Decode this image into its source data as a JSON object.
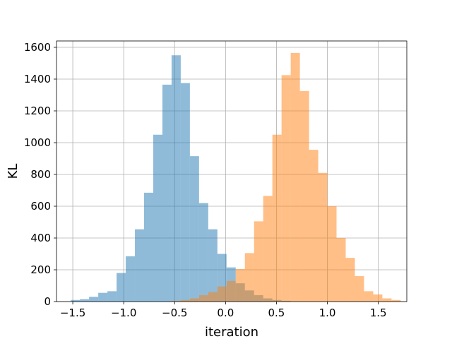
{
  "chart_data": {
    "type": "bar",
    "xlabel": "iteration",
    "ylabel": "KL",
    "xlim": [
      -1.66,
      1.78
    ],
    "ylim": [
      0,
      1640
    ],
    "grid": true,
    "x_ticks": [
      -1.5,
      -1.0,
      -0.5,
      0.0,
      0.5,
      1.0,
      1.5
    ],
    "x_tick_labels": [
      "−1.5",
      "−1.0",
      "−0.5",
      "0.0",
      "0.5",
      "1.0",
      "1.5"
    ],
    "y_ticks": [
      0,
      200,
      400,
      600,
      800,
      1000,
      1200,
      1400,
      1600
    ],
    "y_tick_labels": [
      "0",
      "200",
      "400",
      "600",
      "800",
      "1000",
      "1200",
      "1400",
      "1600"
    ],
    "series": [
      {
        "color": "#1f77b4",
        "alpha": 0.5,
        "bins": [
          {
            "x0": -1.52,
            "x1": -1.43,
            "value": 10
          },
          {
            "x0": -1.43,
            "x1": -1.34,
            "value": 15
          },
          {
            "x0": -1.34,
            "x1": -1.25,
            "value": 30
          },
          {
            "x0": -1.25,
            "x1": -1.16,
            "value": 55
          },
          {
            "x0": -1.16,
            "x1": -1.07,
            "value": 65
          },
          {
            "x0": -1.07,
            "x1": -0.98,
            "value": 180
          },
          {
            "x0": -0.98,
            "x1": -0.89,
            "value": 285
          },
          {
            "x0": -0.89,
            "x1": -0.8,
            "value": 455
          },
          {
            "x0": -0.8,
            "x1": -0.71,
            "value": 685
          },
          {
            "x0": -0.71,
            "x1": -0.62,
            "value": 1050
          },
          {
            "x0": -0.62,
            "x1": -0.53,
            "value": 1365
          },
          {
            "x0": -0.53,
            "x1": -0.44,
            "value": 1550
          },
          {
            "x0": -0.44,
            "x1": -0.35,
            "value": 1375
          },
          {
            "x0": -0.35,
            "x1": -0.26,
            "value": 915
          },
          {
            "x0": -0.26,
            "x1": -0.17,
            "value": 620
          },
          {
            "x0": -0.17,
            "x1": -0.08,
            "value": 455
          },
          {
            "x0": -0.08,
            "x1": 0.01,
            "value": 300
          },
          {
            "x0": 0.01,
            "x1": 0.1,
            "value": 215
          },
          {
            "x0": 0.1,
            "x1": 0.19,
            "value": 115
          },
          {
            "x0": 0.19,
            "x1": 0.28,
            "value": 70
          },
          {
            "x0": 0.28,
            "x1": 0.37,
            "value": 40
          },
          {
            "x0": 0.37,
            "x1": 0.46,
            "value": 20
          },
          {
            "x0": 0.46,
            "x1": 0.55,
            "value": 10
          },
          {
            "x0": 0.55,
            "x1": 0.64,
            "value": 5
          }
        ]
      },
      {
        "color": "#ff7f0e",
        "alpha": 0.5,
        "bins": [
          {
            "x0": -0.53,
            "x1": -0.44,
            "value": 5
          },
          {
            "x0": -0.44,
            "x1": -0.35,
            "value": 10
          },
          {
            "x0": -0.35,
            "x1": -0.26,
            "value": 20
          },
          {
            "x0": -0.26,
            "x1": -0.17,
            "value": 40
          },
          {
            "x0": -0.17,
            "x1": -0.08,
            "value": 60
          },
          {
            "x0": -0.08,
            "x1": 0.01,
            "value": 95
          },
          {
            "x0": 0.01,
            "x1": 0.1,
            "value": 130
          },
          {
            "x0": 0.1,
            "x1": 0.19,
            "value": 205
          },
          {
            "x0": 0.19,
            "x1": 0.28,
            "value": 305
          },
          {
            "x0": 0.28,
            "x1": 0.37,
            "value": 505
          },
          {
            "x0": 0.37,
            "x1": 0.46,
            "value": 665
          },
          {
            "x0": 0.46,
            "x1": 0.55,
            "value": 1050
          },
          {
            "x0": 0.55,
            "x1": 0.64,
            "value": 1425
          },
          {
            "x0": 0.64,
            "x1": 0.73,
            "value": 1565
          },
          {
            "x0": 0.73,
            "x1": 0.82,
            "value": 1325
          },
          {
            "x0": 0.82,
            "x1": 0.91,
            "value": 955
          },
          {
            "x0": 0.91,
            "x1": 1.0,
            "value": 810
          },
          {
            "x0": 1.0,
            "x1": 1.09,
            "value": 600
          },
          {
            "x0": 1.09,
            "x1": 1.18,
            "value": 400
          },
          {
            "x0": 1.18,
            "x1": 1.27,
            "value": 275
          },
          {
            "x0": 1.27,
            "x1": 1.36,
            "value": 160
          },
          {
            "x0": 1.36,
            "x1": 1.45,
            "value": 65
          },
          {
            "x0": 1.45,
            "x1": 1.54,
            "value": 45
          },
          {
            "x0": 1.54,
            "x1": 1.63,
            "value": 20
          },
          {
            "x0": 1.63,
            "x1": 1.72,
            "value": 10
          }
        ]
      }
    ]
  }
}
